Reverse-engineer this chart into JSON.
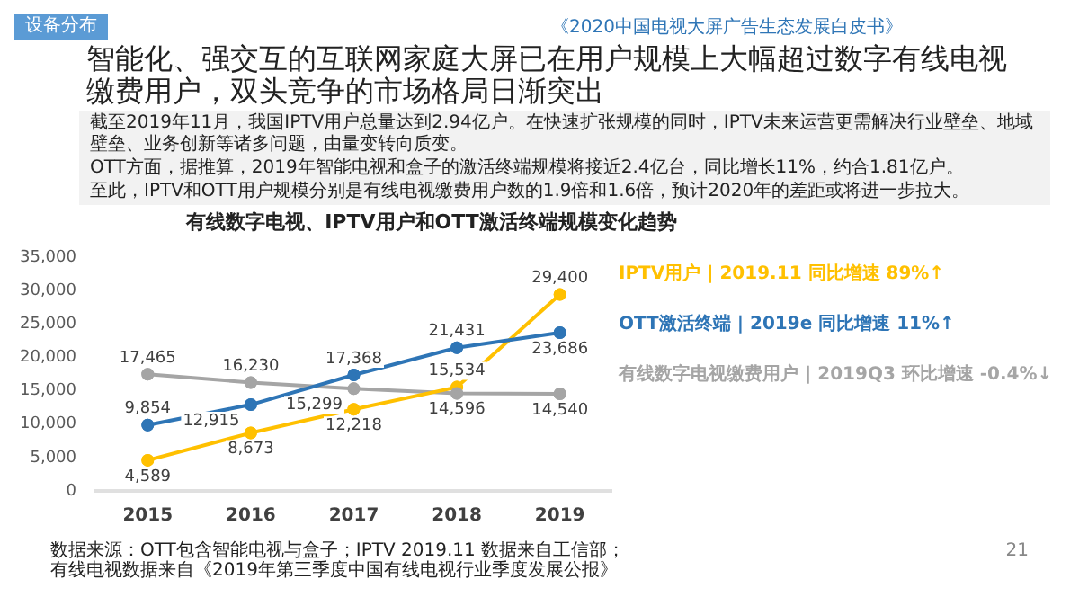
{
  "chart_data": {
    "type": "line",
    "title": "有线数字电视、IPTV用户和OTT激活终端规模变化趋势",
    "annotations": [
      "设备分布",
      "《2020中国电视大屏广告生态发展白皮书》",
      "智能化、强交互的互联网家庭大屏已在用户规模上大幅超过数字有线电视缴费用户，双头竞争的市场格局日渐突出",
      "截至2019年11月，我国IPTV用户总量达到2.94亿户。在快速扩张规模的同时，IPTV未来运营更需解决行业壁垒、地域壁垒、业务创新等诸多问题，由量变转向质变。",
      "OTT方面，据推算，2019年智能电视和盒子的激活终端规模将接近2.4亿台，同比增长11%，约合1.81亿户。",
      "至此，IPTV和OTT用户规模分别是有线电视缴费用户数的1.9倍和1.6倍，预计2020年的差距或将进一步拉大。",
      "数据来源：OTT包含智能电视与盒子；IPTV 2019.11 数据来自工信部；",
      "有线电视数据来自《2019年第三季度中国有线电视行业季度发展公报》",
      "21"
    ],
    "categories": [
      "2015",
      "2016",
      "2017",
      "2018",
      "2019"
    ],
    "series": [
      {
        "name": "OTT激活终端 | 2019e 同比增速 11%↑",
        "color": "#2e75b6",
        "values": [
          9854,
          12915,
          17368,
          21431,
          23686
        ],
        "value_labels": [
          "9,854",
          "12,915",
          "17,368",
          "21,431",
          "23,686"
        ]
      },
      {
        "name": "IPTV用户 | 2019.11 同比增速 89%↑",
        "color": "#ffc000",
        "values": [
          4589,
          8673,
          12218,
          15534,
          29400
        ],
        "value_labels": [
          "4,589",
          "8,673",
          "12,218",
          "15,534",
          "29,400"
        ]
      },
      {
        "name": "有线数字电视缴费用户 | 2019Q3 环比增速 -0.4%↓",
        "color": "#a5a5a5",
        "values": [
          17465,
          16230,
          15299,
          14596,
          14540
        ],
        "value_labels": [
          "17,465",
          "16,230",
          "15,299",
          "14,596",
          "14,540"
        ]
      }
    ],
    "ylim": [
      0,
      35000
    ],
    "yticks": [
      0,
      {
        "value": 5000,
        "label": "5,000"
      },
      {
        "value": 10000,
        "label": "10,000"
      },
      {
        "value": 15000,
        "label": "15,000"
      },
      {
        "value": 20000,
        "label": "20,000"
      },
      {
        "value": 25000,
        "label": "25,000"
      },
      {
        "value": 30000,
        "label": "30,000"
      },
      {
        "value": 35000,
        "label": "35,000"
      }
    ],
    "grid": false,
    "legend": false,
    "marker": "circle",
    "line_style": "solid"
  }
}
